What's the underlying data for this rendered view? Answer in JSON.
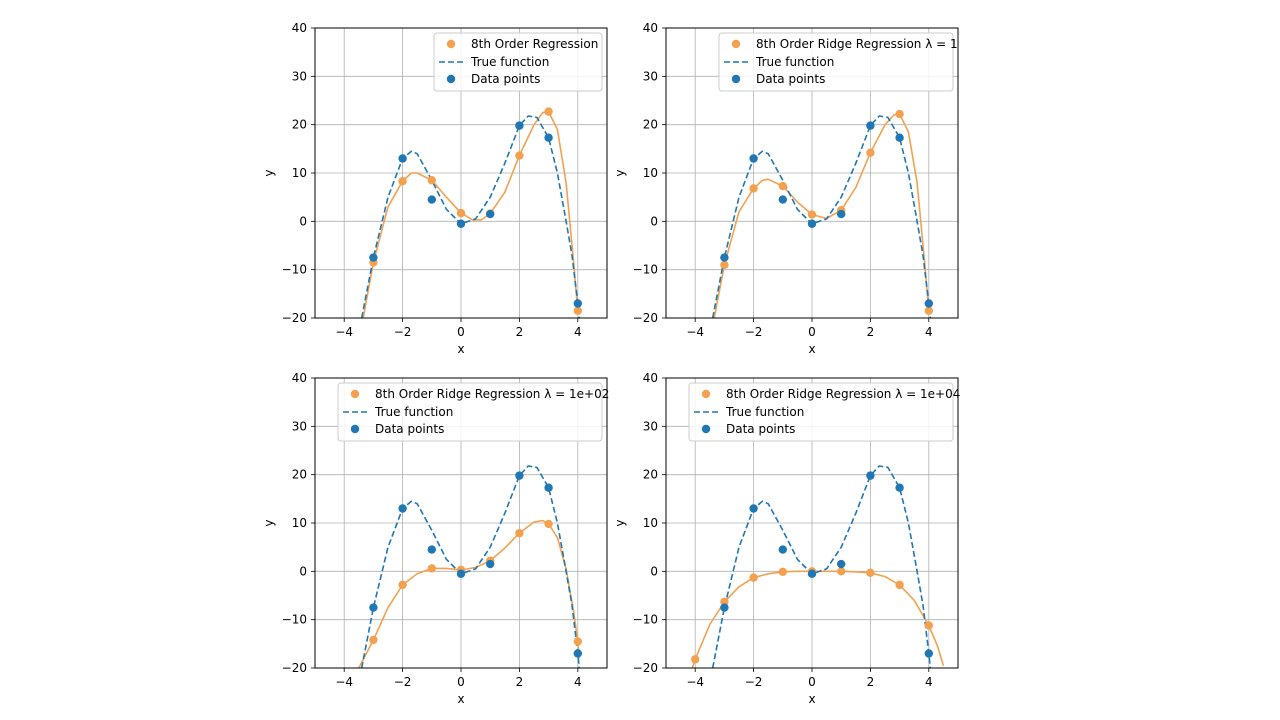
{
  "figure": {
    "colors": {
      "data": "#1f77b4",
      "fit": "#f4a14f",
      "grid": "#b0b0b0"
    }
  },
  "chart_data": [
    {
      "type": "line",
      "xlabel": "x",
      "ylabel": "y",
      "xlim": [
        -5,
        5
      ],
      "ylim": [
        -20,
        40
      ],
      "xticks": [
        "−4",
        "−2",
        "0",
        "2",
        "4"
      ],
      "yticks": [
        "−20",
        "−10",
        "0",
        "10",
        "20",
        "30",
        "40"
      ],
      "grid": true,
      "legend": "top-right",
      "legend_labels": [
        "8th Order Regression",
        "True function",
        "Data points"
      ],
      "data_points": {
        "x": [
          -3,
          -2,
          -1,
          0,
          1,
          2,
          3,
          4
        ],
        "y": [
          -7.5,
          13,
          4.5,
          -0.5,
          1.5,
          19.8,
          17.3,
          -17
        ]
      },
      "fit_points": {
        "x": [
          -3,
          -2,
          -1,
          0,
          1,
          2,
          3,
          4
        ],
        "y": [
          -8.5,
          8.3,
          8.5,
          1.7,
          1.6,
          13.6,
          22.7,
          -18.5
        ]
      },
      "fit_curve": {
        "x": [
          -3.35,
          -3,
          -2.5,
          -2,
          -1.7,
          -1.5,
          -1,
          -0.5,
          0,
          0.4,
          0.7,
          1,
          1.5,
          2,
          2.5,
          2.8,
          3,
          3.3,
          3.6,
          3.85,
          4
        ],
        "y": [
          -20,
          -8.5,
          3,
          8.3,
          10,
          10,
          8.5,
          5,
          1.7,
          0.3,
          0.3,
          1.6,
          6,
          13.6,
          20,
          22.5,
          22.7,
          19,
          8,
          -8,
          -18.5
        ]
      },
      "true_curve": {
        "x": [
          -3.4,
          -3,
          -2.5,
          -2,
          -1.7,
          -1.5,
          -1,
          -0.5,
          0,
          0.5,
          1,
          1.5,
          2,
          2.3,
          2.6,
          3,
          3.3,
          3.6,
          3.8,
          4,
          4.05
        ],
        "y": [
          -20,
          -7.5,
          5,
          13,
          14.5,
          14,
          8.5,
          2.5,
          -0.5,
          0.5,
          5,
          12,
          19.8,
          21.8,
          21.5,
          17.3,
          10,
          0,
          -7,
          -17,
          -20
        ]
      }
    },
    {
      "type": "line",
      "xlabel": "x",
      "ylabel": "y",
      "xlim": [
        -5,
        5
      ],
      "ylim": [
        -20,
        40
      ],
      "xticks": [
        "−4",
        "−2",
        "0",
        "2",
        "4"
      ],
      "yticks": [
        "−20",
        "−10",
        "0",
        "10",
        "20",
        "30",
        "40"
      ],
      "grid": true,
      "legend": "top-right",
      "legend_labels": [
        "8th Order Ridge Regression λ = 1",
        "True function",
        "Data points"
      ],
      "data_points": {
        "x": [
          -3,
          -2,
          -1,
          0,
          1,
          2,
          3,
          4
        ],
        "y": [
          -7.5,
          13,
          4.5,
          -0.5,
          1.5,
          19.8,
          17.3,
          -17
        ]
      },
      "fit_points": {
        "x": [
          -3,
          -2,
          -1,
          0,
          1,
          2,
          3,
          4
        ],
        "y": [
          -9,
          6.8,
          7.3,
          1.4,
          2.3,
          14.2,
          22.2,
          -18.5
        ]
      },
      "fit_curve": {
        "x": [
          -3.35,
          -3,
          -2.5,
          -2,
          -1.7,
          -1.5,
          -1,
          -0.5,
          0,
          0.5,
          1,
          1.5,
          2,
          2.5,
          2.8,
          3,
          3.3,
          3.6,
          3.85,
          4
        ],
        "y": [
          -20,
          -9,
          2,
          6.8,
          8.5,
          8.7,
          7.3,
          4,
          1.4,
          0.6,
          2.3,
          7,
          14.2,
          20,
          22,
          22.2,
          18.5,
          8,
          -8,
          -18.5
        ]
      },
      "true_curve": {
        "x": [
          -3.4,
          -3,
          -2.5,
          -2,
          -1.7,
          -1.5,
          -1,
          -0.5,
          0,
          0.5,
          1,
          1.5,
          2,
          2.3,
          2.6,
          3,
          3.3,
          3.6,
          3.8,
          4,
          4.05
        ],
        "y": [
          -20,
          -7.5,
          5,
          13,
          14.5,
          14,
          8.5,
          2.5,
          -0.5,
          0.5,
          5,
          12,
          19.8,
          21.8,
          21.5,
          17.3,
          10,
          0,
          -7,
          -17,
          -20
        ]
      }
    },
    {
      "type": "line",
      "xlabel": "x",
      "ylabel": "y",
      "xlim": [
        -5,
        5
      ],
      "ylim": [
        -20,
        40
      ],
      "xticks": [
        "−4",
        "−2",
        "0",
        "2",
        "4"
      ],
      "yticks": [
        "−20",
        "−10",
        "0",
        "10",
        "20",
        "30",
        "40"
      ],
      "grid": true,
      "legend": "top-right",
      "legend_labels": [
        "8th Order Ridge Regression λ = 1e+02",
        "True function",
        "Data points"
      ],
      "data_points": {
        "x": [
          -3,
          -2,
          -1,
          0,
          1,
          2,
          3,
          4
        ],
        "y": [
          -7.5,
          13,
          4.5,
          -0.5,
          1.5,
          19.8,
          17.3,
          -17
        ]
      },
      "fit_points": {
        "x": [
          -3,
          -2,
          -1,
          0,
          1,
          2,
          3,
          4
        ],
        "y": [
          -14.2,
          -2.8,
          0.6,
          0.3,
          2.2,
          7.9,
          9.8,
          -14.5
        ]
      },
      "fit_curve": {
        "x": [
          -3.5,
          -3,
          -2.5,
          -2,
          -1.5,
          -1,
          -0.5,
          0,
          0.5,
          1,
          1.5,
          2,
          2.5,
          2.8,
          3,
          3.3,
          3.6,
          3.85,
          4,
          4.05
        ],
        "y": [
          -20,
          -14.2,
          -7.5,
          -2.8,
          -0.5,
          0.6,
          0.6,
          0.3,
          0.8,
          2.2,
          4.8,
          7.9,
          10.2,
          10.5,
          9.8,
          7,
          0.5,
          -8,
          -14.5,
          -18
        ]
      },
      "true_curve": {
        "x": [
          -3.4,
          -3,
          -2.5,
          -2,
          -1.7,
          -1.5,
          -1,
          -0.5,
          0,
          0.5,
          1,
          1.5,
          2,
          2.3,
          2.6,
          3,
          3.3,
          3.6,
          3.8,
          4,
          4.05
        ],
        "y": [
          -20,
          -7.5,
          5,
          13,
          14.5,
          14,
          8.5,
          2.5,
          -0.5,
          0.5,
          5,
          12,
          19.8,
          21.8,
          21.5,
          17.3,
          10,
          0,
          -7,
          -17,
          -20
        ]
      }
    },
    {
      "type": "line",
      "xlabel": "x",
      "ylabel": "y",
      "xlim": [
        -5,
        5
      ],
      "ylim": [
        -20,
        40
      ],
      "xticks": [
        "−4",
        "−2",
        "0",
        "2",
        "4"
      ],
      "yticks": [
        "−20",
        "−10",
        "0",
        "10",
        "20",
        "30",
        "40"
      ],
      "grid": true,
      "legend": "top-right",
      "legend_labels": [
        "8th Order Ridge Regression λ = 1e+04",
        "True function",
        "Data points"
      ],
      "data_points": {
        "x": [
          -3,
          -2,
          -1,
          0,
          1,
          2,
          3,
          4
        ],
        "y": [
          -7.5,
          13,
          4.5,
          -0.5,
          1.5,
          19.8,
          17.3,
          -17
        ]
      },
      "fit_points": {
        "x": [
          -4,
          -3,
          -2,
          -1,
          0,
          1,
          2,
          3,
          4
        ],
        "y": [
          -18.2,
          -6.3,
          -1.3,
          -0.1,
          0,
          0,
          -0.3,
          -2.8,
          -11.2
        ]
      },
      "fit_curve": {
        "x": [
          -4.1,
          -4,
          -3.5,
          -3,
          -2.5,
          -2,
          -1.5,
          -1,
          -0.5,
          0,
          0.5,
          1,
          1.5,
          2,
          2.5,
          3,
          3.5,
          4,
          4.3,
          4.5
        ],
        "y": [
          -20,
          -18.2,
          -11,
          -6.3,
          -3.2,
          -1.3,
          -0.5,
          -0.1,
          0,
          0,
          0,
          0,
          -0.1,
          -0.3,
          -1.1,
          -2.8,
          -6,
          -11.2,
          -15.5,
          -19.5
        ]
      },
      "true_curve": {
        "x": [
          -3.4,
          -3,
          -2.5,
          -2,
          -1.7,
          -1.5,
          -1,
          -0.5,
          0,
          0.5,
          1,
          1.5,
          2,
          2.3,
          2.6,
          3,
          3.3,
          3.6,
          3.8,
          4,
          4.05
        ],
        "y": [
          -20,
          -7.5,
          5,
          13,
          14.5,
          14,
          8.5,
          2.5,
          -0.5,
          0.5,
          5,
          12,
          19.8,
          21.8,
          21.5,
          17.3,
          10,
          0,
          -7,
          -17,
          -20
        ]
      }
    }
  ]
}
